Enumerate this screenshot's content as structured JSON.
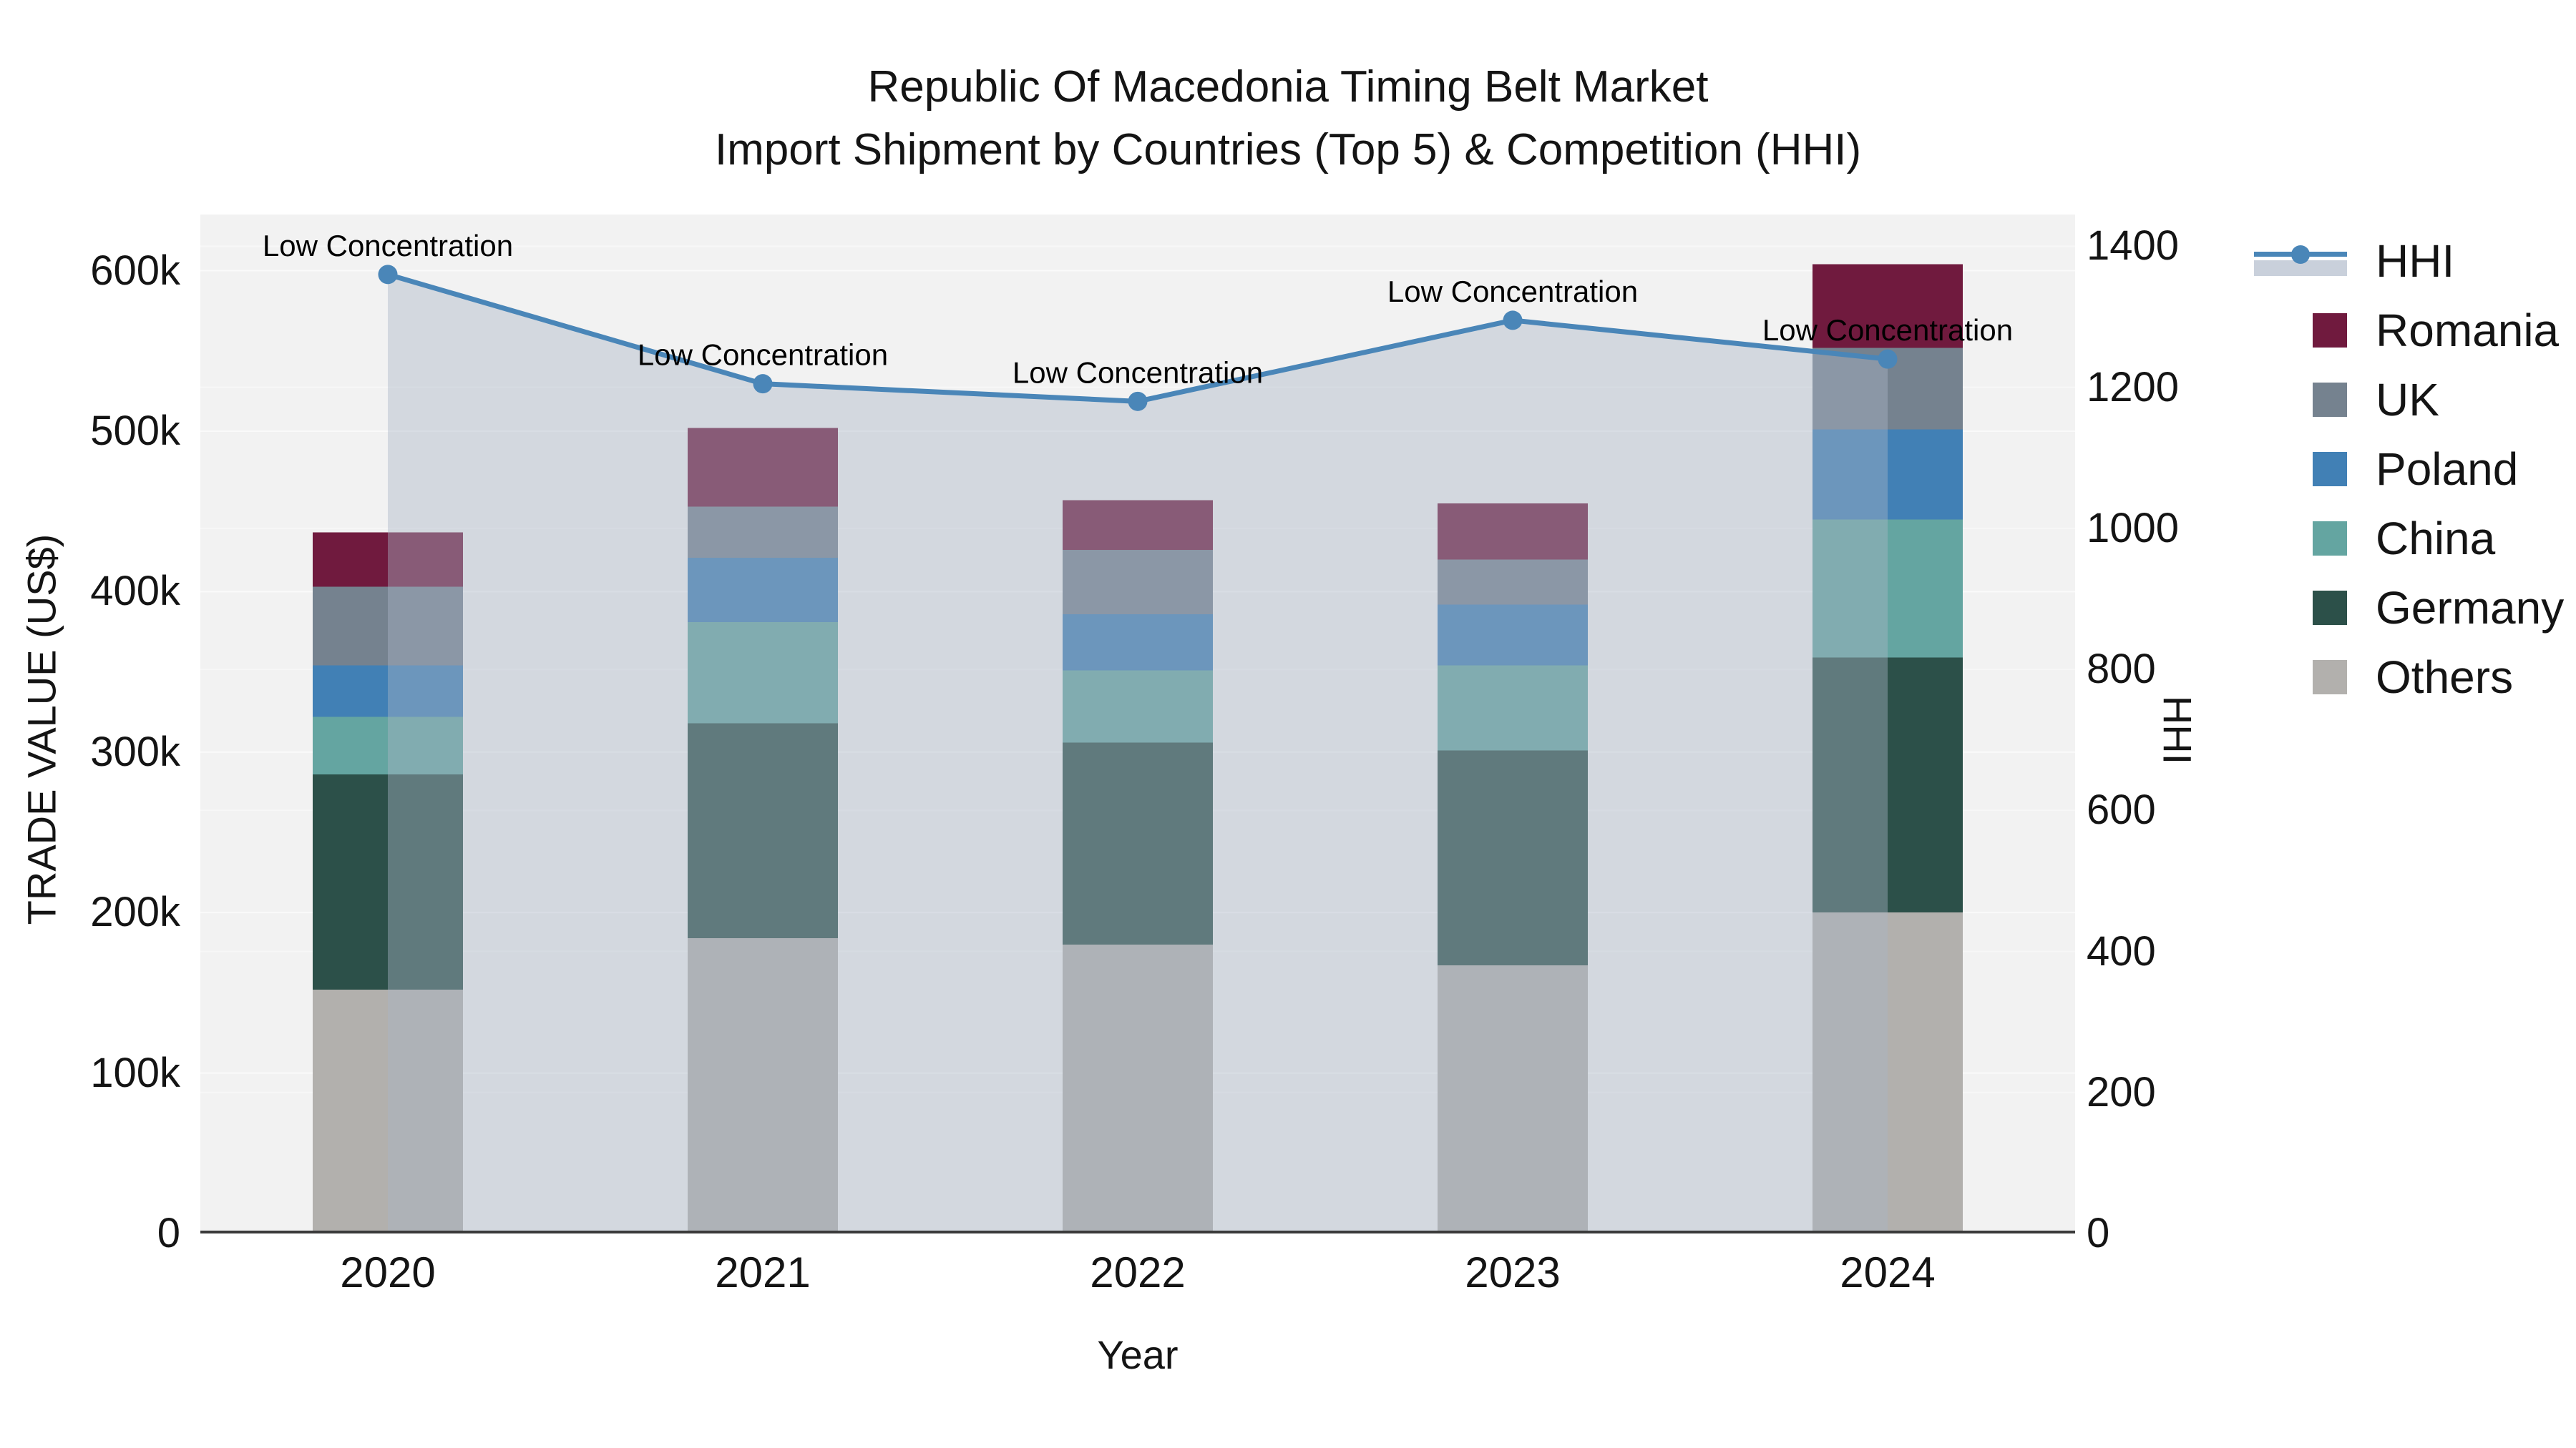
{
  "chart_data": {
    "type": "combo-stacked-bar-line",
    "title": "Republic Of Macedonia Timing Belt Market",
    "subtitle": "Import Shipment by Countries (Top 5) & Competition (HHI)",
    "xlabel": "Year",
    "categories": [
      "2020",
      "2021",
      "2022",
      "2023",
      "2024"
    ],
    "y_left": {
      "label": "TRADE VALUE (US$)",
      "tick_labels": [
        "0",
        "100k",
        "200k",
        "300k",
        "400k",
        "500k",
        "600k"
      ],
      "tick_values": [
        0,
        100000,
        200000,
        300000,
        400000,
        500000,
        600000
      ],
      "axis_max": 635000
    },
    "y_right": {
      "label": "HHI",
      "tick_labels": [
        "0",
        "200",
        "400",
        "600",
        "800",
        "1000",
        "1200",
        "1400"
      ],
      "tick_values": [
        0,
        200,
        400,
        600,
        800,
        1000,
        1200,
        1400
      ],
      "axis_max": 1445
    },
    "bar_series": [
      {
        "name": "Others",
        "color": "#B2B0AD",
        "values": [
          152000,
          184000,
          180000,
          167000,
          200000
        ]
      },
      {
        "name": "Germany",
        "color": "#2C5049",
        "values": [
          134000,
          134000,
          126000,
          134000,
          159000
        ]
      },
      {
        "name": "China",
        "color": "#64A5A1",
        "values": [
          36000,
          63000,
          45000,
          53000,
          86000
        ]
      },
      {
        "name": "Poland",
        "color": "#4180B5",
        "values": [
          32000,
          40000,
          35000,
          38000,
          56000
        ]
      },
      {
        "name": "UK",
        "color": "#75828F",
        "values": [
          49000,
          32000,
          40000,
          28000,
          51000
        ]
      },
      {
        "name": "Romania",
        "color": "#701A3E",
        "values": [
          34000,
          49000,
          31000,
          35000,
          52000
        ]
      }
    ],
    "line_series": {
      "name": "HHI",
      "color": "#4A86B8",
      "area_color": "#A9B5C6",
      "area_opacity": 0.42,
      "values": [
        1360,
        1205,
        1180,
        1295,
        1240
      ]
    },
    "annotations": [
      "Low Concentration",
      "Low Concentration",
      "Low Concentration",
      "Low Concentration",
      "Low Concentration"
    ],
    "legend_order": [
      "HHI",
      "Romania",
      "UK",
      "Poland",
      "China",
      "Germany",
      "Others"
    ],
    "colors": {
      "plot_bg": "#F2F2F2",
      "grid": "#FFFFFF",
      "axis_line": "#3A3A3A",
      "text": "#141414",
      "legend_area_swatch": "#C9D0DB"
    }
  }
}
